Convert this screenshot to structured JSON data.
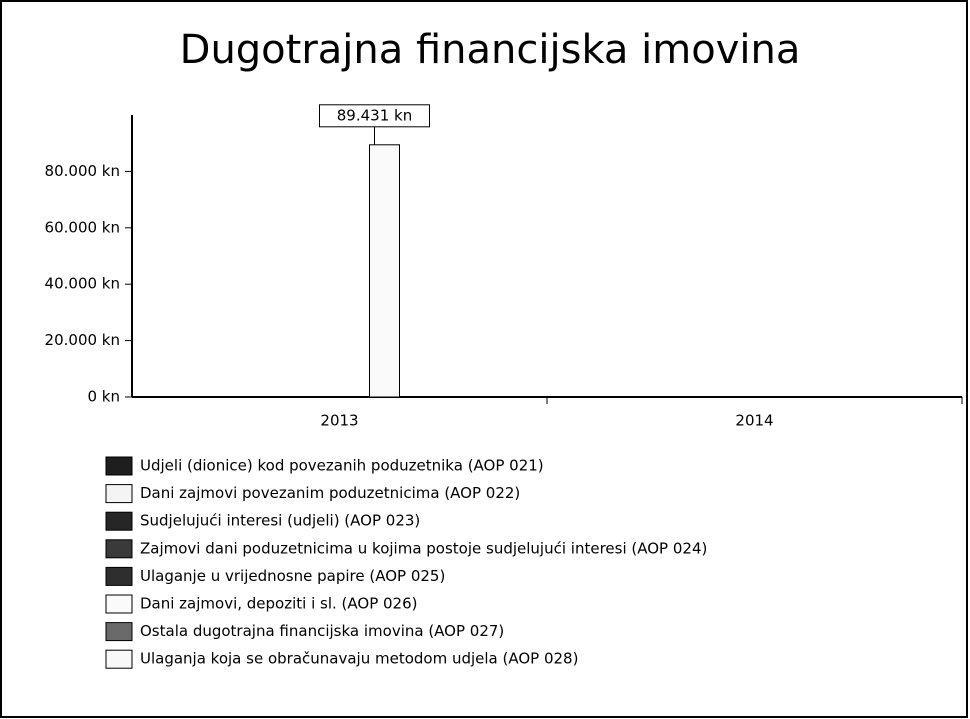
{
  "chart_data": {
    "type": "bar",
    "title": "Dugotrajna financijska imovina",
    "categories": [
      "2013",
      "2014"
    ],
    "series": [
      {
        "name": "Udjeli (dionice) kod povezanih poduzetnika (AOP 021)",
        "color": "#1e1e1e",
        "values": [
          0,
          0
        ]
      },
      {
        "name": "Dani zajmovi povezanim poduzetnicima (AOP 022)",
        "color": "#f4f4f4",
        "values": [
          0,
          0
        ]
      },
      {
        "name": "Sudjelujući interesi (udjeli) (AOP 023)",
        "color": "#262626",
        "values": [
          0,
          0
        ]
      },
      {
        "name": "Zajmovi dani poduzetnicima u kojima postoje sudjelujući interesi (AOP 024)",
        "color": "#3a3a3a",
        "values": [
          0,
          0
        ]
      },
      {
        "name": "Ulaganje u vrijednosne papire (AOP 025)",
        "color": "#2e2e2e",
        "values": [
          0,
          0
        ]
      },
      {
        "name": "Dani zajmovi, depoziti i sl. (AOP 026)",
        "color": "#fafafa",
        "values": [
          89431,
          0
        ],
        "value_labels": [
          "89.431 kn",
          null
        ]
      },
      {
        "name": "Ostala dugotrajna financijska imovina (AOP 027)",
        "color": "#6a6a6a",
        "values": [
          0,
          0
        ]
      },
      {
        "name": "Ulaganja koja se obračunavaju metodom udjela (AOP 028)",
        "color": "#f8f8f8",
        "values": [
          0,
          0
        ]
      }
    ],
    "ylim": [
      0,
      100000
    ],
    "yticks": [
      {
        "value": 0,
        "label": "0 kn"
      },
      {
        "value": 20000,
        "label": "20.000 kn"
      },
      {
        "value": 40000,
        "label": "40.000 kn"
      },
      {
        "value": 60000,
        "label": "60.000 kn"
      },
      {
        "value": 80000,
        "label": "80.000 kn"
      }
    ],
    "grid": false
  }
}
